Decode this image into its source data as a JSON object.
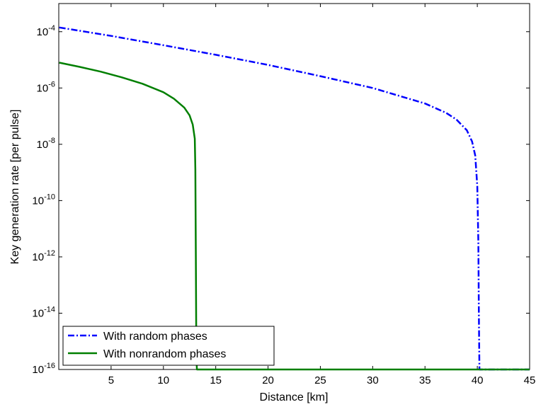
{
  "chart_data": {
    "type": "line",
    "title": "",
    "xlabel": "Distance [km]",
    "ylabel": "Key generation rate [per pulse]",
    "xlim": [
      0,
      45
    ],
    "ylim_log10": [
      -16,
      -3
    ],
    "y_scale": "log",
    "grid": false,
    "legend_position": "bottom-left",
    "x_ticks": [
      5,
      10,
      15,
      20,
      25,
      30,
      35,
      40,
      45
    ],
    "y_ticks": [
      {
        "base": "10",
        "exp": "-4",
        "value": -4
      },
      {
        "base": "10",
        "exp": "-6",
        "value": -6
      },
      {
        "base": "10",
        "exp": "-8",
        "value": -8
      },
      {
        "base": "10",
        "exp": "-10",
        "value": -10
      },
      {
        "base": "10",
        "exp": "-12",
        "value": -12
      },
      {
        "base": "10",
        "exp": "-14",
        "value": -14
      },
      {
        "base": "10",
        "exp": "-16",
        "value": -16
      }
    ],
    "series": [
      {
        "name": "With random phases",
        "color": "#0000ff",
        "style": "dash-dot",
        "x": [
          0.05,
          5,
          10,
          15,
          20,
          25,
          30,
          35,
          37,
          38,
          39,
          39.5,
          39.8,
          40.0,
          40.1,
          40.15,
          40.2,
          40.25,
          45
        ],
        "log10_y": [
          -3.85,
          -4.15,
          -4.48,
          -4.82,
          -5.18,
          -5.58,
          -6.0,
          -6.55,
          -6.88,
          -7.12,
          -7.5,
          -7.9,
          -8.4,
          -9.5,
          -11.5,
          -14,
          -16,
          -16,
          -16
        ]
      },
      {
        "name": "With nonrandom phases",
        "color": "#007f00",
        "style": "solid",
        "x": [
          0.05,
          2,
          4,
          6,
          8,
          10,
          11,
          12,
          12.5,
          12.8,
          13.0,
          13.05,
          13.1,
          13.15,
          13.2,
          45
        ],
        "log10_y": [
          -5.1,
          -5.25,
          -5.42,
          -5.62,
          -5.85,
          -6.15,
          -6.38,
          -6.7,
          -6.97,
          -7.3,
          -7.8,
          -8.9,
          -12.0,
          -15.5,
          -16,
          -16
        ]
      }
    ]
  }
}
